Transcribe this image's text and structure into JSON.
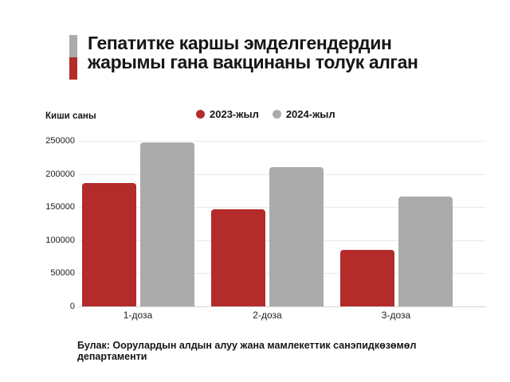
{
  "title": {
    "line1": "Гепатитке каршы эмделгендердин",
    "line2": "жарымы гана вакцинаны толук алган"
  },
  "axis_title": "Киши саны",
  "legend": [
    {
      "label": "2023-жыл",
      "color": "#b42b2b"
    },
    {
      "label": "2024-жыл",
      "color": "#ababab"
    }
  ],
  "source": "Булак: Оорулардын алдын алуу жана мамлекеттик санэпидкөзөмөл департаменти",
  "colors": {
    "accent_red": "#b42b2b",
    "accent_gray": "#ababab",
    "text": "#161616",
    "gridline": "#e9e9e9"
  },
  "chart_data": {
    "type": "bar",
    "categories": [
      "1-доза",
      "2-доза",
      "3-доза"
    ],
    "series": [
      {
        "name": "2023-жыл",
        "color": "#b42b2b",
        "values": [
          187000,
          147000,
          85000
        ]
      },
      {
        "name": "2024-жыл",
        "color": "#ababab",
        "values": [
          248000,
          211000,
          166000
        ]
      }
    ],
    "title": "Гепатитке каршы эмделгендердин жарымы гана вакцинаны толук алган",
    "xlabel": "",
    "ylabel": "Киши саны",
    "ylim": [
      0,
      250000
    ],
    "yticks": [
      0,
      50000,
      100000,
      150000,
      200000,
      250000
    ],
    "grid": true,
    "legend_position": "top"
  }
}
